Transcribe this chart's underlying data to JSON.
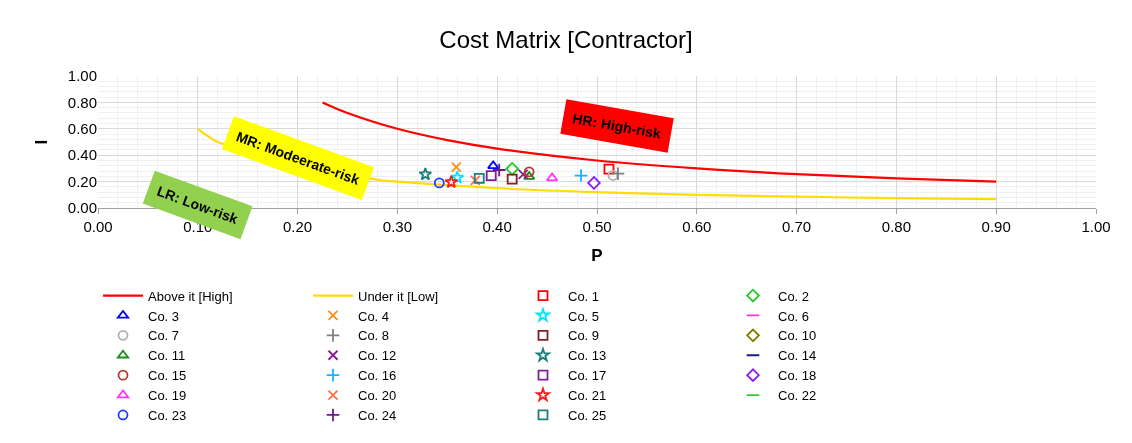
{
  "chart_data": {
    "type": "scatter",
    "title": "Cost Matrix [Contractor]",
    "xlabel": "P",
    "ylabel": "I",
    "xlim": [
      0,
      1
    ],
    "xticks": [
      {
        "value": 0,
        "label": "0.00"
      },
      {
        "value": 0.1,
        "label": "0.10"
      },
      {
        "value": 0.2,
        "label": "0.20"
      },
      {
        "value": 0.3,
        "label": "0.30"
      },
      {
        "value": 0.4,
        "label": "0.40"
      },
      {
        "value": 0.5,
        "label": "0.50"
      },
      {
        "value": 0.6,
        "label": "0.60"
      },
      {
        "value": 0.7,
        "label": "0.70"
      },
      {
        "value": 0.8,
        "label": "0.80"
      },
      {
        "value": 0.9,
        "label": "0.90"
      },
      {
        "value": 1,
        "label": "1.00"
      }
    ],
    "ylim": [
      0,
      1
    ],
    "yticks": [
      {
        "value": 0,
        "label": "0.00"
      },
      {
        "value": 0.2,
        "label": "0.20"
      },
      {
        "value": 0.4,
        "label": "0.40"
      },
      {
        "value": 0.6,
        "label": "0.60"
      },
      {
        "value": 0.8,
        "label": "0.80"
      },
      {
        "value": 1,
        "label": "1.00"
      }
    ],
    "grid": true,
    "legend": "bottom",
    "annotations": [
      "HR: High-risk",
      "MR: Modeerate-risk",
      "LR: Low-risk"
    ],
    "series": [
      {
        "name": "Above it [High]",
        "type": "line",
        "color": "#ff0000",
        "marker": "none",
        "x": [
          0.225,
          0.25,
          0.3,
          0.35,
          0.4,
          0.5,
          0.6,
          0.7,
          0.8,
          0.9
        ],
        "values": [
          0.8,
          0.72,
          0.6,
          0.514,
          0.45,
          0.36,
          0.3,
          0.257,
          0.225,
          0.2
        ]
      },
      {
        "name": "Under it [Low]",
        "type": "line",
        "color": "#ffdd00",
        "marker": "none",
        "x": [
          0.1,
          0.11,
          0.12,
          0.28,
          0.3,
          0.4,
          0.5,
          0.6,
          0.7,
          0.8,
          0.9
        ],
        "values": [
          0.6,
          0.545,
          0.5,
          0.214,
          0.2,
          0.15,
          0.12,
          0.1,
          0.086,
          0.075,
          0.067
        ]
      },
      {
        "name": "Co. 1",
        "color": "#ff0000",
        "marker": "square",
        "x": [
          0.512
        ],
        "values": [
          0.294
        ]
      },
      {
        "name": "Co. 2",
        "color": "#22cc22",
        "marker": "diamond",
        "x": [
          0.415
        ],
        "values": [
          0.297
        ]
      },
      {
        "name": "Co. 3",
        "color": "#0000ff",
        "marker": "triangle",
        "x": [
          0.396
        ],
        "values": [
          0.319
        ]
      },
      {
        "name": "Co. 4",
        "color": "#ff8c1a",
        "marker": "x",
        "x": [
          0.359
        ],
        "values": [
          0.31
        ]
      },
      {
        "name": "Co. 5",
        "color": "#00e5ff",
        "marker": "star",
        "x": [
          0.36
        ],
        "values": [
          0.23
        ]
      },
      {
        "name": "Co. 6",
        "color": "#ff33cc",
        "marker": "dash",
        "x": [
          null
        ],
        "values": [
          null
        ]
      },
      {
        "name": "Co. 7",
        "color": "#b0b0b0",
        "marker": "circle",
        "x": [
          0.516
        ],
        "values": [
          0.247
        ]
      },
      {
        "name": "Co. 8",
        "color": "#808080",
        "marker": "cross",
        "x": [
          0.521
        ],
        "values": [
          0.26
        ]
      },
      {
        "name": "Co. 9",
        "color": "#7f1f1f",
        "marker": "square",
        "x": [
          0.415
        ],
        "values": [
          0.218
        ]
      },
      {
        "name": "Co. 10",
        "color": "#808000",
        "marker": "diamond",
        "x": [
          null
        ],
        "values": [
          null
        ]
      },
      {
        "name": "Co. 11",
        "color": "#1a8c1a",
        "marker": "triangle",
        "x": [
          0.432
        ],
        "values": [
          0.238
        ]
      },
      {
        "name": "Co. 12",
        "color": "#8c1a8c",
        "marker": "x",
        "x": [
          0.426
        ],
        "values": [
          0.255
        ]
      },
      {
        "name": "Co. 13",
        "color": "#1a7f7f",
        "marker": "star",
        "x": [
          0.328
        ],
        "values": [
          0.255
        ]
      },
      {
        "name": "Co. 14",
        "color": "#1a1a7f",
        "marker": "dash",
        "x": [
          null
        ],
        "values": [
          null
        ]
      },
      {
        "name": "Co. 15",
        "color": "#b03a2e",
        "marker": "circle",
        "x": [
          0.432
        ],
        "values": [
          0.274
        ]
      },
      {
        "name": "Co. 16",
        "color": "#1ab2ff",
        "marker": "cross",
        "x": [
          0.484
        ],
        "values": [
          0.246
        ]
      },
      {
        "name": "Co. 17",
        "color": "#7f1f9f",
        "marker": "square",
        "x": [
          0.394
        ],
        "values": [
          0.246
        ]
      },
      {
        "name": "Co. 18",
        "color": "#8c1aff",
        "marker": "diamond",
        "x": [
          0.497
        ],
        "values": [
          0.19
        ]
      },
      {
        "name": "Co. 19",
        "color": "#ff33ff",
        "marker": "triangle",
        "x": [
          0.455
        ],
        "values": [
          0.227
        ]
      },
      {
        "name": "Co. 20",
        "color": "#ff6f4f",
        "marker": "x",
        "x": [
          0.378
        ],
        "values": [
          0.21
        ]
      },
      {
        "name": "Co. 21",
        "color": "#ff1a1a",
        "marker": "star",
        "x": [
          0.354
        ],
        "values": [
          0.196
        ]
      },
      {
        "name": "Co. 22",
        "color": "#33cc33",
        "marker": "dash",
        "x": [
          null
        ],
        "values": [
          null
        ]
      },
      {
        "name": "Co. 23",
        "color": "#1a3fff",
        "marker": "circle",
        "x": [
          0.342
        ],
        "values": [
          0.19
        ]
      },
      {
        "name": "Co. 24",
        "color": "#6a1a8c",
        "marker": "cross",
        "x": [
          0.402
        ],
        "values": [
          0.288
        ]
      },
      {
        "name": "Co. 25",
        "color": "#1a7f7f",
        "marker": "square",
        "x": [
          0.382
        ],
        "values": [
          0.224
        ]
      }
    ]
  }
}
